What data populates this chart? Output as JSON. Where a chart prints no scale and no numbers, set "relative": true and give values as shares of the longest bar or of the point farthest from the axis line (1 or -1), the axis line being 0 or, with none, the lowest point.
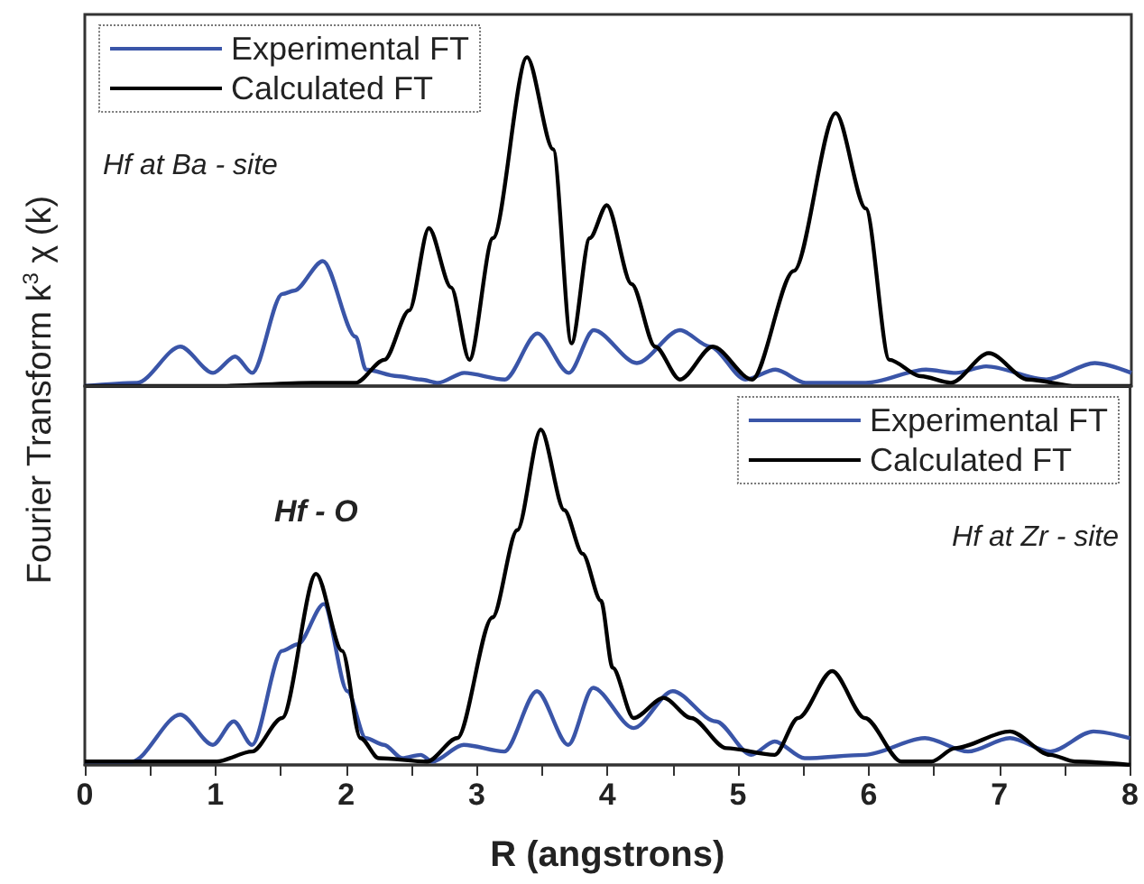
{
  "chart_data": [
    {
      "type": "line",
      "relative": true,
      "ylabel": "Fourier Transform k$^{3}$ χ (k)",
      "xlim": [
        0,
        8
      ],
      "tick_labels": false,
      "legend": "top left",
      "annotations": [
        "Hf at Ba - site"
      ],
      "series": [
        {
          "name": "Experimental FT",
          "color": "#3a55a8",
          "x": [
            0,
            0.4,
            0.73,
            0.98,
            1.15,
            1.28,
            1.51,
            1.6,
            1.82,
            2.07,
            2.15,
            2.39,
            2.57,
            2.7,
            2.9,
            3.21,
            3.46,
            3.7,
            3.89,
            4.22,
            4.55,
            4.78,
            5.05,
            5.28,
            5.51,
            5.97,
            6.43,
            6.66,
            6.89,
            7.35,
            7.72,
            8
          ],
          "values": [
            0,
            0.01,
            0.12,
            0.04,
            0.09,
            0.04,
            0.28,
            0.29,
            0.38,
            0.15,
            0.05,
            0.03,
            0.02,
            0.01,
            0.04,
            0.02,
            0.16,
            0.04,
            0.17,
            0.07,
            0.17,
            0.12,
            0.02,
            0.05,
            0.01,
            0.01,
            0.05,
            0.04,
            0.06,
            0.02,
            0.07,
            0.04
          ]
        },
        {
          "name": "Calculated FT",
          "color": "#000000",
          "x": [
            0,
            1.0,
            1.74,
            2.07,
            2.29,
            2.48,
            2.63,
            2.8,
            2.94,
            3.12,
            3.38,
            3.58,
            3.72,
            3.86,
            3.99,
            4.18,
            4.36,
            4.55,
            4.8,
            5.1,
            5.42,
            5.74,
            5.97,
            6.15,
            6.39,
            6.62,
            6.91,
            7.21,
            7.58,
            8
          ],
          "values": [
            0,
            0,
            0.01,
            0.01,
            0.08,
            0.23,
            0.48,
            0.3,
            0.08,
            0.45,
            1,
            0.72,
            0.13,
            0.45,
            0.55,
            0.31,
            0.12,
            0.02,
            0.12,
            0.02,
            0.35,
            0.83,
            0.54,
            0.08,
            0.03,
            0.01,
            0.1,
            0.02,
            0,
            0
          ]
        }
      ]
    },
    {
      "type": "line",
      "relative": true,
      "xlabel": "R (angstrons)",
      "xlim": [
        0,
        8
      ],
      "xticks": [
        0,
        {
          "value": 0.5,
          "label": null
        },
        1,
        {
          "value": 1.5,
          "label": null
        },
        2,
        {
          "value": 2.5,
          "label": null
        },
        3,
        {
          "value": 3.5,
          "label": null
        },
        4,
        {
          "value": 4.5,
          "label": null
        },
        5,
        {
          "value": 5.5,
          "label": null
        },
        6,
        {
          "value": 6.5,
          "label": null
        },
        7,
        {
          "value": 7.5,
          "label": null
        },
        8
      ],
      "tick_labels": "x",
      "legend": "top right",
      "annotations": [
        {
          "text": "Hf - O",
          "x": 1.77,
          "y": 0.57
        },
        "Hf at Zr - site"
      ],
      "series": [
        {
          "name": "Experimental FT",
          "color": "#3a55a8",
          "x": [
            0,
            0.36,
            0.73,
            0.98,
            1.14,
            1.28,
            1.51,
            1.63,
            1.83,
            2.01,
            2.15,
            2.29,
            2.43,
            2.57,
            2.66,
            2.9,
            3.21,
            3.46,
            3.7,
            3.89,
            4.2,
            4.5,
            4.83,
            5.1,
            5.28,
            5.51,
            5.97,
            6.43,
            6.76,
            7.08,
            7.39,
            7.72,
            8
          ],
          "values": [
            0.01,
            0.01,
            0.15,
            0.06,
            0.13,
            0.06,
            0.34,
            0.36,
            0.48,
            0.22,
            0.08,
            0.06,
            0.02,
            0.03,
            0.01,
            0.06,
            0.04,
            0.22,
            0.06,
            0.23,
            0.11,
            0.22,
            0.13,
            0.03,
            0.07,
            0.02,
            0.03,
            0.08,
            0.04,
            0.08,
            0.04,
            0.1,
            0.08
          ]
        },
        {
          "name": "Calculated FT",
          "color": "#000000",
          "x": [
            0,
            1.01,
            1.28,
            1.51,
            1.77,
            1.97,
            2.11,
            2.25,
            2.62,
            2.85,
            3.12,
            3.31,
            3.49,
            3.67,
            3.81,
            3.95,
            4.04,
            4.2,
            4.43,
            4.64,
            4.91,
            5.28,
            5.46,
            5.72,
            5.97,
            6.25,
            6.48,
            6.66,
            7.08,
            7.39,
            7.58,
            8
          ],
          "values": [
            0.01,
            0.01,
            0.04,
            0.14,
            0.57,
            0.34,
            0.08,
            0.02,
            0.01,
            0.08,
            0.44,
            0.7,
            1,
            0.76,
            0.63,
            0.49,
            0.29,
            0.14,
            0.2,
            0.14,
            0.05,
            0.03,
            0.14,
            0.28,
            0.14,
            0.01,
            0.01,
            0.05,
            0.1,
            0.03,
            0.01,
            0
          ]
        }
      ]
    }
  ]
}
